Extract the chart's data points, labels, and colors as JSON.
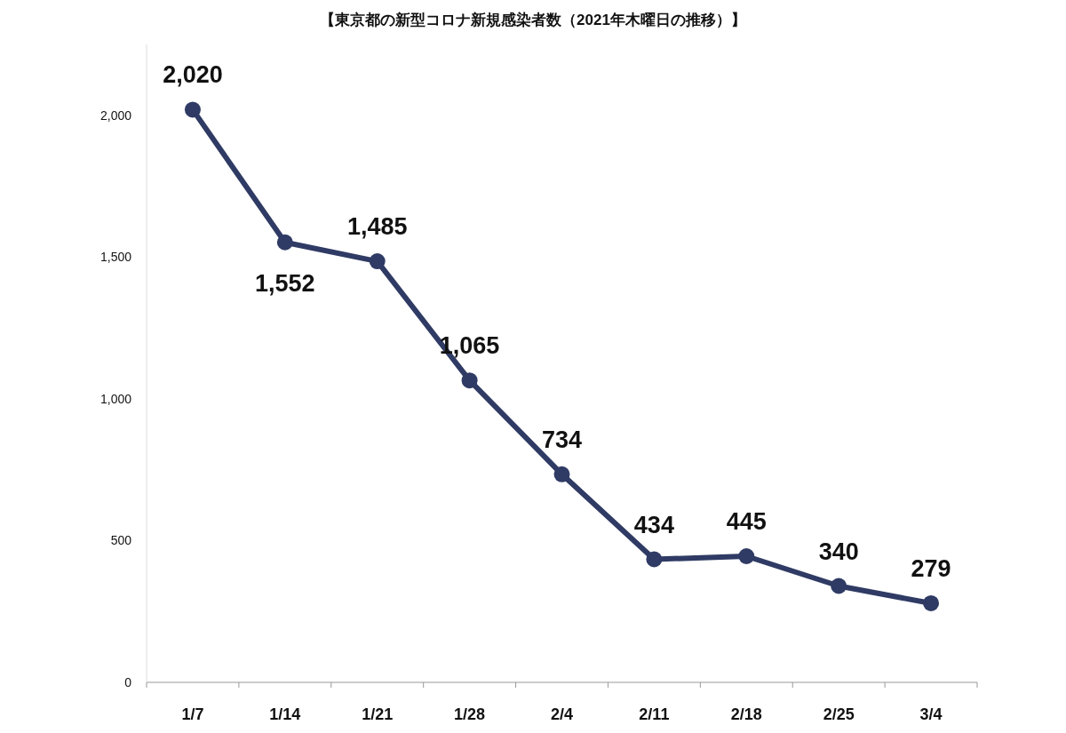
{
  "chart_data": {
    "type": "line",
    "title": "【東京都の新型コロナ新規感染者数（2021年木曜日の推移）】",
    "categories": [
      "1/7",
      "1/14",
      "1/21",
      "1/28",
      "2/4",
      "2/11",
      "2/18",
      "2/25",
      "3/4"
    ],
    "series": [
      {
        "color": "#2f3b64",
        "values": [
          2020,
          1552,
          1485,
          1065,
          734,
          434,
          445,
          340,
          279
        ]
      }
    ],
    "ylim": [
      0,
      2250
    ],
    "yticks": [
      {
        "value": 0,
        "label": "0"
      },
      {
        "value": 500,
        "label": "500"
      },
      {
        "value": 1000,
        "label": "1,000"
      },
      {
        "value": 1500,
        "label": "1,500"
      },
      {
        "value": 2000,
        "label": "2,000"
      }
    ],
    "value_labels": [
      "2,020",
      "1,552",
      "1,485",
      "1,065",
      "734",
      "434",
      "445",
      "340",
      "279"
    ],
    "marker": "circle",
    "grid": false
  }
}
